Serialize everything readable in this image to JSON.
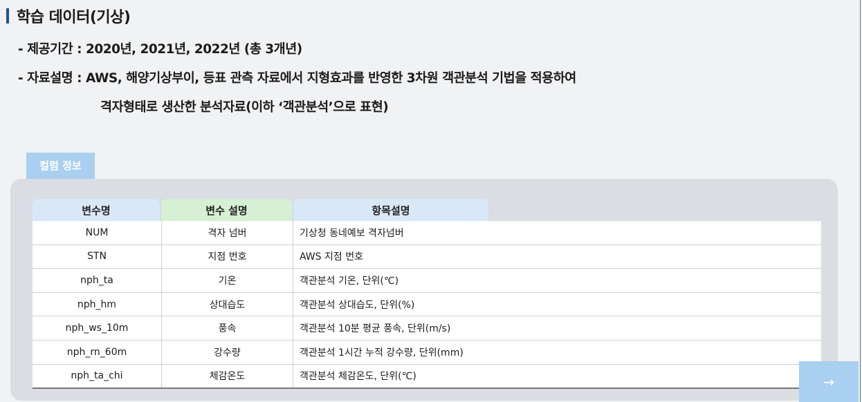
{
  "title": "학습 데이터(기상)",
  "lines": {
    "period": "- 제공기간 : 2020년, 2021년, 2022년 (총 3개년)",
    "desc1": "- 자료설명 : AWS, 해양기상부이, 등표 관측 자료에서 지형효과를 반영한 3차원 객관분석 기법을 적용하여",
    "desc2": "격자형태로 생산한 분석자료(이하 ‘객관분석’으로 표현)"
  },
  "tag_label": "컬럼 정보",
  "table": {
    "headers": [
      "변수명",
      "변수 설명",
      "항목설명"
    ],
    "rows": [
      [
        "NUM",
        "격자 넘버",
        "기상청 동네예보 격자넘버"
      ],
      [
        "STN",
        "지점 번호",
        "AWS 지점 번호"
      ],
      [
        "nph_ta",
        "기온",
        "객관분석 기온, 단위(℃)"
      ],
      [
        "nph_hm",
        "상대습도",
        "객관분석 상대습도, 단위(%)"
      ],
      [
        "nph_ws_10m",
        "풍속",
        "객관분석 10분 평균 풍속, 단위(m/s)"
      ],
      [
        "nph_rn_60m",
        "강수량",
        "객관분석 1시간 누적 강수량, 단위(mm)"
      ],
      [
        "nph_ta_chi",
        "체감온도",
        "객관분석 체감온도, 단위(℃)"
      ]
    ]
  },
  "next_arrow": "→",
  "colors": {
    "accent": "#1d4fa0",
    "tag": "#a9cff1",
    "panel": "#dadde1"
  }
}
